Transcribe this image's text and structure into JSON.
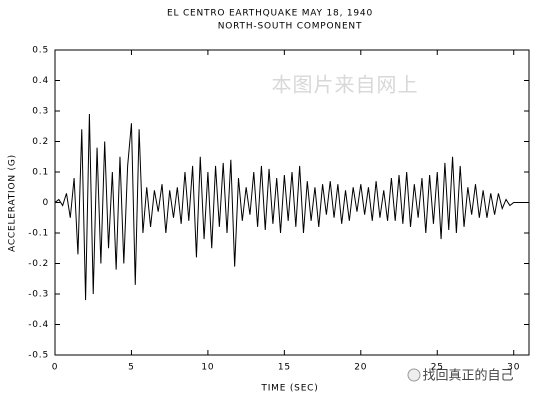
{
  "chart_data": {
    "type": "line",
    "title": "EL CENTRO EARTHQUAKE  MAY 18, 1940",
    "subtitle": "NORTH-SOUTH COMPONENT",
    "x_label": "TIME (SEC)",
    "y_label": "ACCELERATION (G)",
    "color": "#000000",
    "xlim": [
      0,
      31
    ],
    "ylim": [
      -0.5,
      0.5
    ],
    "xticks": [
      0,
      5,
      10,
      15,
      20,
      25,
      30
    ],
    "yticks": [
      0.5,
      0.4,
      0.3,
      0.2,
      0.1,
      0,
      -0.1,
      -0.2,
      -0.3,
      -0.4,
      -0.5
    ],
    "x": [
      0,
      0.25,
      0.5,
      0.75,
      1,
      1.25,
      1.5,
      1.75,
      2,
      2.25,
      2.5,
      2.75,
      3,
      3.25,
      3.5,
      3.75,
      4,
      4.25,
      4.5,
      4.75,
      5,
      5.25,
      5.5,
      5.75,
      6,
      6.25,
      6.5,
      6.75,
      7,
      7.25,
      7.5,
      7.75,
      8,
      8.25,
      8.5,
      8.75,
      9,
      9.25,
      9.5,
      9.75,
      10,
      10.25,
      10.5,
      10.75,
      11,
      11.25,
      11.5,
      11.75,
      12,
      12.25,
      12.5,
      12.75,
      13,
      13.25,
      13.5,
      13.75,
      14,
      14.25,
      14.5,
      14.75,
      15,
      15.25,
      15.5,
      15.75,
      16,
      16.25,
      16.5,
      16.75,
      17,
      17.25,
      17.5,
      17.75,
      18,
      18.25,
      18.5,
      18.75,
      19,
      19.25,
      19.5,
      19.75,
      20,
      20.25,
      20.5,
      20.75,
      21,
      21.25,
      21.5,
      21.75,
      22,
      22.25,
      22.5,
      22.75,
      23,
      23.25,
      23.5,
      23.75,
      24,
      24.25,
      24.5,
      24.75,
      25,
      25.25,
      25.5,
      25.75,
      26,
      26.25,
      26.5,
      26.75,
      27,
      27.25,
      27.5,
      27.75,
      28,
      28.25,
      28.5,
      28.75,
      29,
      29.25,
      29.5,
      29.75,
      30,
      30.25,
      30.5,
      30.75,
      31
    ],
    "values": [
      0,
      0.01,
      -0.01,
      0.03,
      -0.05,
      0.08,
      -0.17,
      0.24,
      -0.32,
      0.29,
      -0.3,
      0.18,
      -0.2,
      0.2,
      -0.15,
      0.1,
      -0.22,
      0.15,
      -0.2,
      0.12,
      0.26,
      -0.27,
      0.24,
      -0.1,
      0.05,
      -0.08,
      0.04,
      -0.03,
      0.06,
      -0.1,
      0.04,
      -0.05,
      0.05,
      -0.07,
      0.1,
      -0.06,
      0.12,
      -0.18,
      0.15,
      -0.12,
      0.1,
      -0.15,
      0.12,
      -0.08,
      0.13,
      -0.1,
      0.14,
      -0.21,
      0.08,
      -0.06,
      0.05,
      -0.04,
      0.1,
      -0.08,
      0.12,
      -0.09,
      0.11,
      -0.07,
      0.08,
      -0.1,
      0.09,
      -0.06,
      0.1,
      -0.08,
      0.12,
      -0.1,
      0.07,
      -0.06,
      0.05,
      -0.08,
      0.06,
      -0.04,
      0.07,
      -0.05,
      0.06,
      -0.07,
      0.04,
      -0.06,
      0.05,
      -0.03,
      0.06,
      -0.04,
      0.05,
      -0.06,
      0.07,
      -0.05,
      0.04,
      -0.06,
      0.08,
      -0.06,
      0.09,
      -0.07,
      0.1,
      -0.08,
      0.06,
      -0.05,
      0.08,
      -0.1,
      0.09,
      -0.07,
      0.1,
      -0.12,
      0.13,
      -0.09,
      0.15,
      -0.1,
      0.12,
      -0.08,
      0.05,
      -0.04,
      0.06,
      -0.05,
      0.04,
      -0.05,
      0.03,
      -0.04,
      0.03,
      -0.02,
      0.01,
      -0.01,
      0,
      0,
      0,
      0,
      0
    ]
  },
  "watermarks": [
    "本图片来自网上",
    "找回真正的自己"
  ]
}
